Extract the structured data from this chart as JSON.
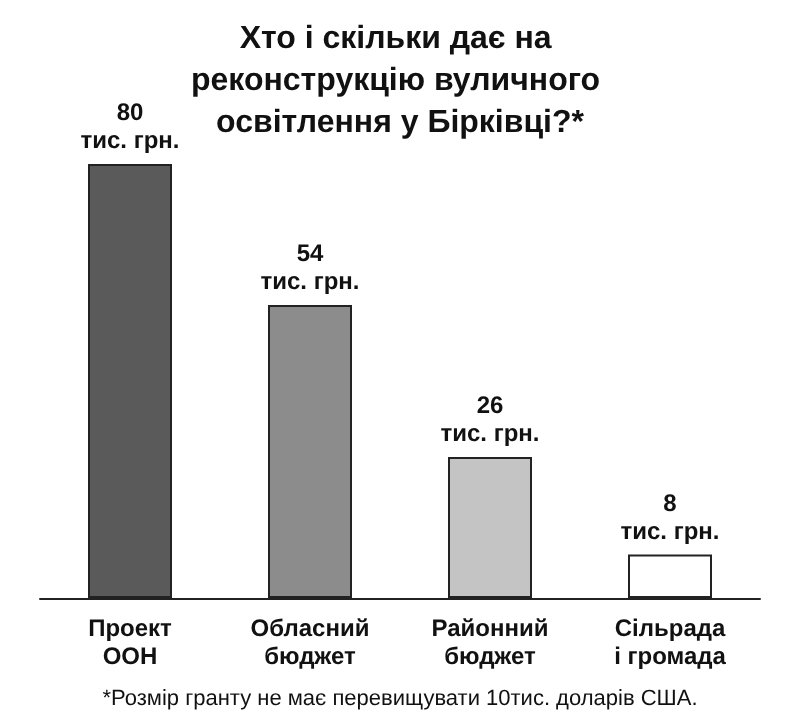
{
  "chart_data": {
    "type": "bar",
    "title": "Хто і скільки дає на реконструкцію вуличного освітлення у Бірківці?*",
    "categories": [
      "Проект ООН",
      "Обласний бюджет",
      "Районний бюджет",
      "Сільрада і громада"
    ],
    "values": [
      80,
      54,
      26,
      8
    ],
    "colors": [
      "#5a5a5a",
      "#8c8c8c",
      "#c4c4c4",
      "#ffffff"
    ],
    "value_labels": [
      "80 тис. грн.",
      "54 тис. грн.",
      "26 тис. грн.",
      "8 тис. грн."
    ],
    "annotations": [
      "*Розмір гранту не має перевищувати 10тис. доларів США."
    ]
  }
}
